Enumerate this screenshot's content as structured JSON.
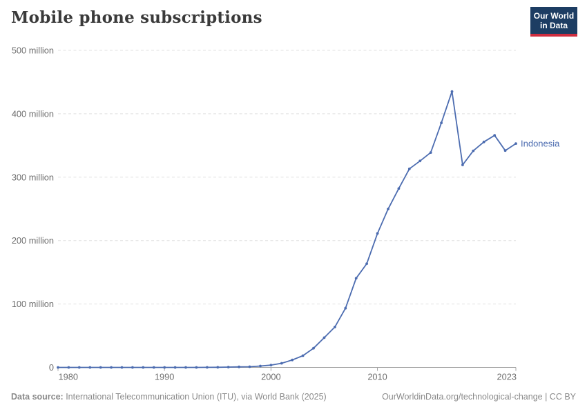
{
  "header": {
    "title": "Mobile phone subscriptions"
  },
  "logo": {
    "line1": "Our World",
    "line2": "in Data"
  },
  "chart_data": {
    "type": "line",
    "title": "Mobile phone subscriptions",
    "entity_label": "Indonesia",
    "unit": "subscriptions (millions)",
    "xlim": [
      1980,
      2023
    ],
    "ylim": [
      0,
      500
    ],
    "grid": "horizontal-dashed",
    "legend_position": "end-of-line-label",
    "x": [
      1980,
      1981,
      1982,
      1983,
      1984,
      1985,
      1986,
      1987,
      1988,
      1989,
      1990,
      1991,
      1992,
      1993,
      1994,
      1995,
      1996,
      1997,
      1998,
      1999,
      2000,
      2001,
      2002,
      2003,
      2004,
      2005,
      2006,
      2007,
      2008,
      2009,
      2010,
      2011,
      2012,
      2013,
      2014,
      2015,
      2016,
      2017,
      2018,
      2019,
      2020,
      2021,
      2022,
      2023
    ],
    "series": [
      {
        "name": "Indonesia",
        "values": [
          0,
          0,
          0,
          0,
          0.001,
          0.002,
          0.003,
          0.005,
          0.01,
          0.013,
          0.022,
          0.027,
          0.036,
          0.053,
          0.078,
          0.21,
          0.56,
          0.92,
          1.07,
          2.22,
          3.67,
          6.52,
          11.7,
          18.5,
          30.3,
          46.9,
          63.8,
          93.4,
          140.6,
          163.7,
          211.3,
          249.8,
          282.0,
          313.2,
          325.6,
          338.9,
          385.6,
          435.2,
          319.4,
          341.6,
          355.6,
          365.9,
          342.0,
          353.0
        ]
      }
    ],
    "y_ticks": [
      {
        "value": 0,
        "label": "0"
      },
      {
        "value": 100,
        "label": "100 million"
      },
      {
        "value": 200,
        "label": "200 million"
      },
      {
        "value": 300,
        "label": "300 million"
      },
      {
        "value": 400,
        "label": "400 million"
      },
      {
        "value": 500,
        "label": "500 million"
      }
    ],
    "x_ticks": [
      {
        "value": 1980,
        "label": "1980"
      },
      {
        "value": 1990,
        "label": "1990"
      },
      {
        "value": 2000,
        "label": "2000"
      },
      {
        "value": 2010,
        "label": "2010"
      },
      {
        "value": 2023,
        "label": "2023"
      }
    ]
  },
  "footer": {
    "source_label": "Data source:",
    "source_text": " International Telecommunication Union (ITU), via World Bank (2025)",
    "license_text": "OurWorldinData.org/technological-change | CC BY"
  },
  "colors": {
    "line": "#4c6cb0",
    "entity_label": "#4c6cb0",
    "grid": "#e0e0e0",
    "axis": "#a3a3a3",
    "tick_text": "#6e6e6e",
    "title_text": "#3a3a3a",
    "footer_text": "#8a8a8a",
    "logo_bg": "#1d3d63",
    "logo_stripe": "#cf2d3f"
  }
}
